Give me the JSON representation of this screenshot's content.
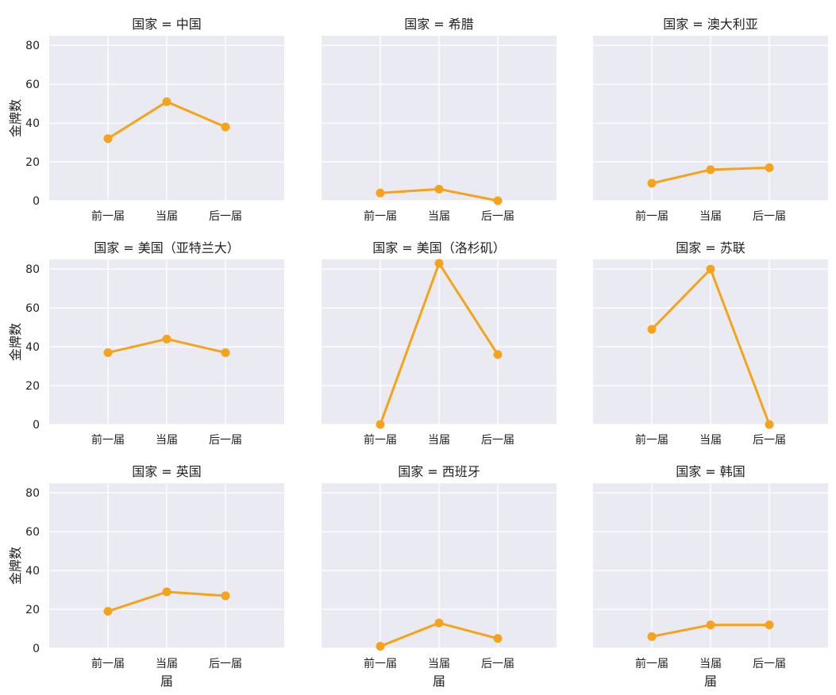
{
  "chart_data": {
    "type": "line",
    "figure_title": "",
    "facet_label_prefix": "国家 = ",
    "categories": [
      "前一届",
      "当届",
      "后一届"
    ],
    "xlabel": "届",
    "ylabel": "金牌数",
    "ylim": [
      0,
      85
    ],
    "yticks": [
      0,
      20,
      40,
      60,
      80
    ],
    "grid": true,
    "line_color": "#F5A31A",
    "panel_bg": "#EAEAF2",
    "grid_color": "#FFFFFF",
    "panels": [
      {
        "country": "中国",
        "values": [
          32,
          51,
          38
        ]
      },
      {
        "country": "希腊",
        "values": [
          4,
          6,
          0
        ]
      },
      {
        "country": "澳大利亚",
        "values": [
          9,
          16,
          17
        ]
      },
      {
        "country": "美国（亚特兰大）",
        "values": [
          37,
          44,
          37
        ]
      },
      {
        "country": "美国（洛杉矶）",
        "values": [
          0,
          83,
          36
        ]
      },
      {
        "country": "苏联",
        "values": [
          49,
          80,
          0
        ]
      },
      {
        "country": "英国",
        "values": [
          19,
          29,
          27
        ]
      },
      {
        "country": "西班牙",
        "values": [
          1,
          13,
          5
        ]
      },
      {
        "country": "韩国",
        "values": [
          6,
          12,
          12
        ]
      }
    ]
  }
}
